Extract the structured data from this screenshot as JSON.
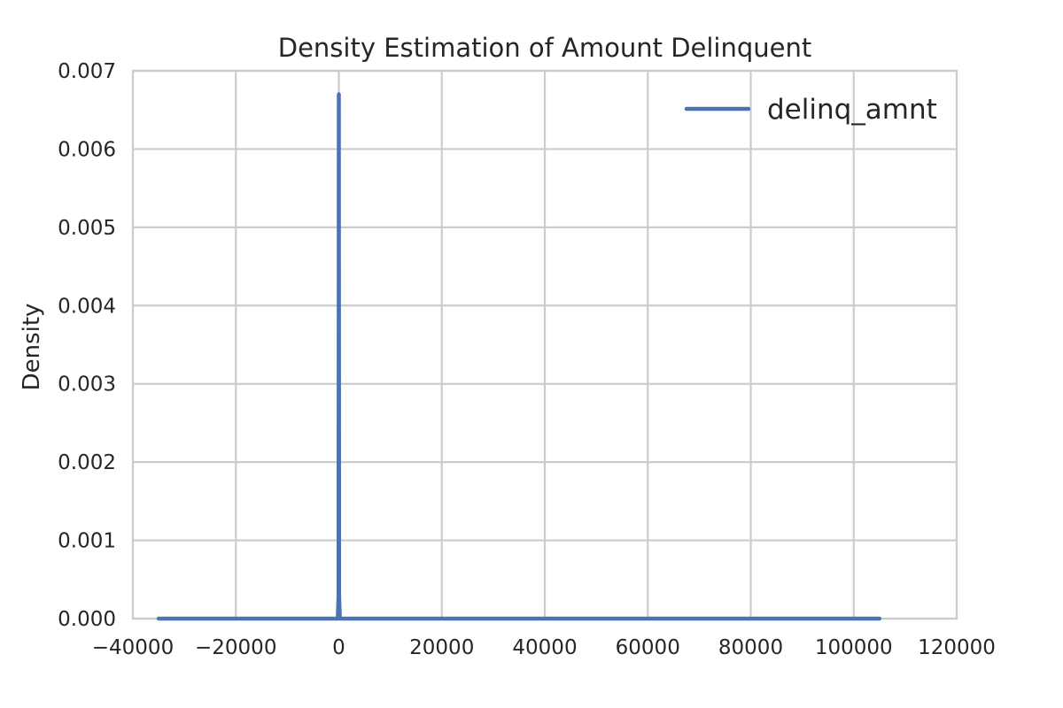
{
  "chart_data": {
    "type": "line",
    "title": "Density Estimation of Amount Delinquent",
    "xlabel": "",
    "ylabel": "Density",
    "xlim": [
      -40000,
      120000
    ],
    "ylim": [
      0,
      0.007
    ],
    "x_ticks": [
      -40000,
      -20000,
      0,
      20000,
      40000,
      60000,
      80000,
      100000,
      120000
    ],
    "x_tick_labels": [
      "−40000",
      "−20000",
      "0",
      "20000",
      "40000",
      "60000",
      "80000",
      "100000",
      "120000"
    ],
    "y_ticks": [
      0,
      0.001,
      0.002,
      0.003,
      0.004,
      0.005,
      0.006,
      0.007
    ],
    "y_tick_labels": [
      "0.000",
      "0.001",
      "0.002",
      "0.003",
      "0.004",
      "0.005",
      "0.006",
      "0.007"
    ],
    "grid": true,
    "legend": {
      "position": "top-right",
      "entries": [
        "delinq_amnt"
      ]
    },
    "series": [
      {
        "name": "delinq_amnt",
        "color": "#4c72b0",
        "x": [
          -35000,
          -200,
          -50,
          0,
          50,
          200,
          105000
        ],
        "y": [
          0,
          0,
          0.0003,
          0.0067,
          0.0003,
          0,
          0
        ]
      }
    ]
  }
}
